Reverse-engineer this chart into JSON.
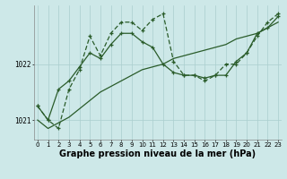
{
  "xlabel": "Graphe pression niveau de la mer (hPa)",
  "background_color": "#cde8e8",
  "grid_color": "#aacece",
  "line_color": "#2a5c2a",
  "x": [
    0,
    1,
    2,
    3,
    4,
    5,
    6,
    7,
    8,
    9,
    10,
    11,
    12,
    13,
    14,
    15,
    16,
    17,
    18,
    19,
    20,
    21,
    22,
    23
  ],
  "line1": [
    1021.25,
    1021.0,
    1021.55,
    1021.7,
    1021.95,
    1022.2,
    1022.1,
    1022.35,
    1022.55,
    1022.55,
    1022.4,
    1022.3,
    1022.0,
    1021.85,
    1021.8,
    1021.8,
    1021.75,
    1021.8,
    1021.8,
    1022.05,
    1022.2,
    1022.55,
    1022.65,
    1022.85
  ],
  "line2": [
    1021.25,
    1021.0,
    1020.85,
    1021.55,
    1021.9,
    1022.5,
    1022.15,
    1022.55,
    1022.75,
    1022.75,
    1022.6,
    1022.8,
    1022.9,
    1022.05,
    1021.8,
    1021.8,
    1021.7,
    1021.8,
    1022.0,
    1022.0,
    1022.2,
    1022.5,
    1022.75,
    1022.9
  ],
  "line3": [
    1021.0,
    1020.85,
    1020.95,
    1021.05,
    1021.2,
    1021.35,
    1021.5,
    1021.6,
    1021.7,
    1021.8,
    1021.9,
    1021.95,
    1022.0,
    1022.1,
    1022.15,
    1022.2,
    1022.25,
    1022.3,
    1022.35,
    1022.45,
    1022.5,
    1022.55,
    1022.65,
    1022.75
  ],
  "ylim": [
    1020.65,
    1023.05
  ],
  "yticks": [
    1021.0,
    1022.0
  ],
  "xticks": [
    0,
    1,
    2,
    3,
    4,
    5,
    6,
    7,
    8,
    9,
    10,
    11,
    12,
    13,
    14,
    15,
    16,
    17,
    18,
    19,
    20,
    21,
    22,
    23
  ],
  "tick_fontsize": 5.5,
  "xlabel_fontsize": 7,
  "marker_size": 3.0,
  "lw": 0.9
}
